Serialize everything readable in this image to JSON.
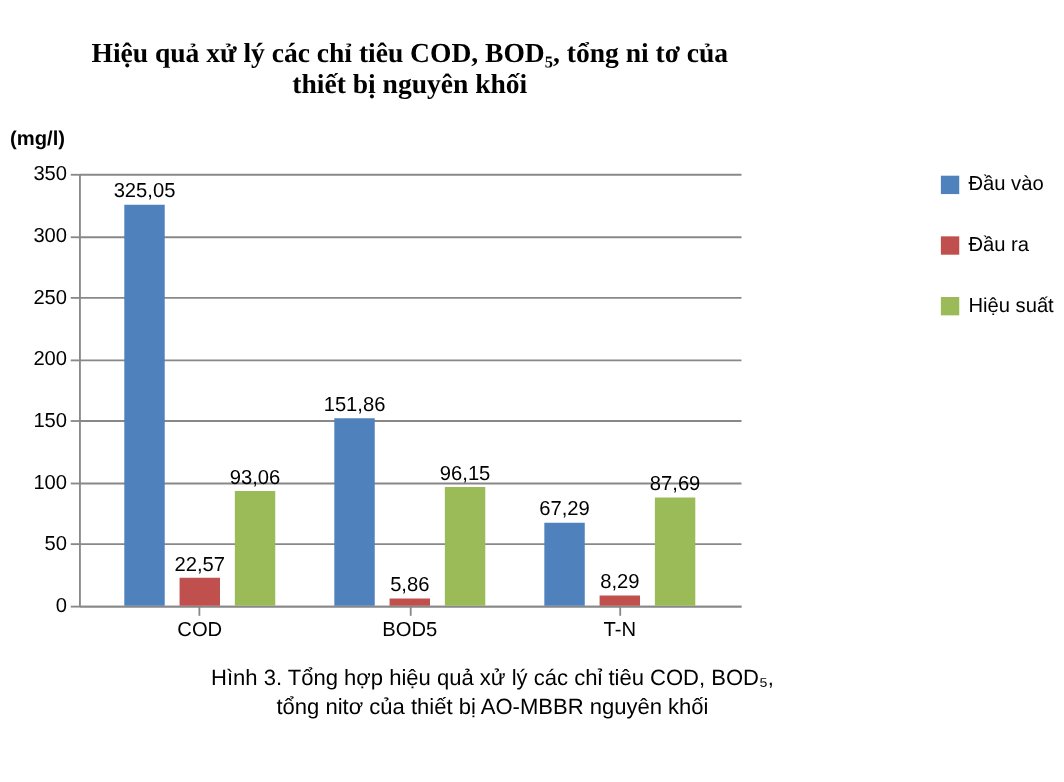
{
  "chart_data": {
    "type": "bar",
    "title": [
      "Hiệu quả xử lý các chỉ tiêu COD, BOD₅, tổng ni tơ của",
      "thiết bị nguyên khối"
    ],
    "ylabel": "(mg/l)",
    "categories": [
      "COD",
      "BOD5",
      "T-N"
    ],
    "series": [
      {
        "name": "Đầu vào",
        "color": "#4f81bd",
        "values": [
          325.05,
          151.86,
          67.29
        ],
        "value_labels": [
          "325,05",
          "151,86",
          "67,29"
        ]
      },
      {
        "name": "Đầu ra",
        "color": "#c0504d",
        "values": [
          22.57,
          5.86,
          8.29
        ],
        "value_labels": [
          "22,57",
          "5,86",
          "8,29"
        ]
      },
      {
        "name": "Hiệu suất",
        "color": "#9bbb59",
        "values": [
          93.06,
          96.15,
          87.69
        ],
        "value_labels": [
          "93,06",
          "96,15",
          "87,69"
        ]
      }
    ],
    "ylim": [
      0,
      350
    ],
    "yticks": [
      0,
      50,
      100,
      150,
      200,
      250,
      300,
      350
    ],
    "grid": "y",
    "legend": "right",
    "annotations": [
      "Hình 3.  Tổng hợp hiệu quả xử lý các chỉ tiêu COD, BOD₅,",
      "tổng nitơ của thiết bị AO-MBBR nguyên khối"
    ]
  }
}
